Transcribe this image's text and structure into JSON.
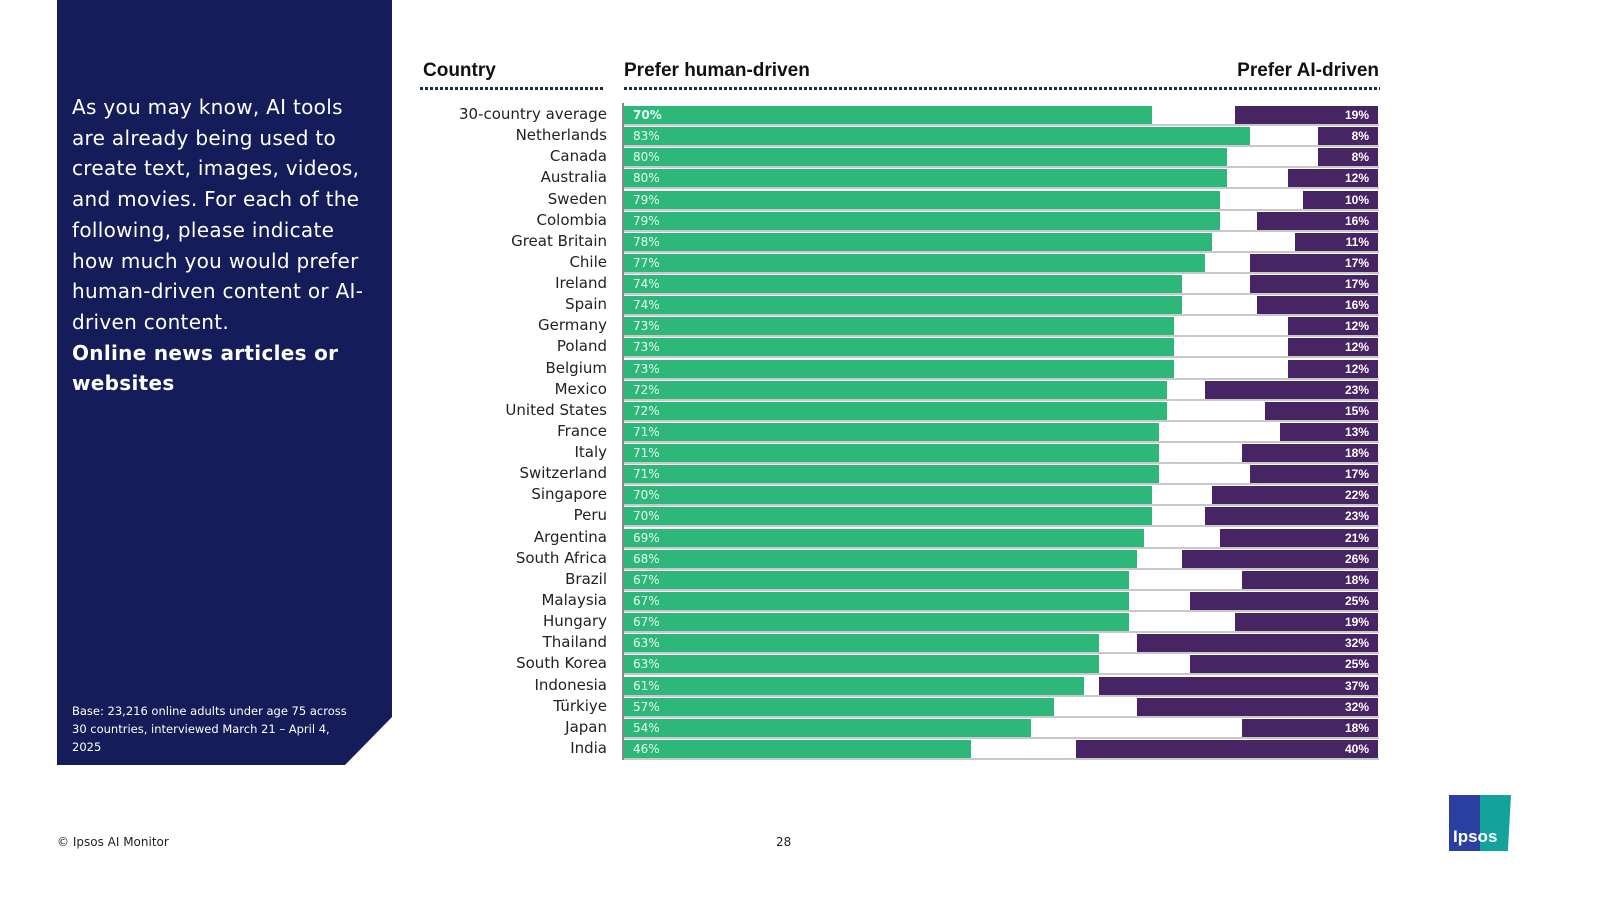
{
  "panel": {
    "question": "As you may know, AI tools are already being used to create text, images, videos, and movies. For each of the following, please indicate how much you would prefer human-driven content or AI-driven content.",
    "topic": "Online news articles or websites",
    "base": "Base: 23,216 online adults under age 75 across 30 countries, interviewed March 21 – April 4, 2025"
  },
  "footer": {
    "source": "© Ipsos AI Monitor",
    "page": "28",
    "logo": "Ipsos"
  },
  "colors": {
    "human": "#2db87a",
    "ai": "#472464",
    "panel": "#141c5a"
  },
  "chart_data": {
    "type": "bar",
    "headers": {
      "country": "Country",
      "human": "Prefer human-driven",
      "ai": "Prefer AI-driven"
    },
    "categories": [
      "30-country average",
      "Netherlands",
      "Canada",
      "Australia",
      "Sweden",
      "Colombia",
      "Great Britain",
      "Chile",
      "Ireland",
      "Spain",
      "Germany",
      "Poland",
      "Belgium",
      "Mexico",
      "United States",
      "France",
      "Italy",
      "Switzerland",
      "Singapore",
      "Peru",
      "Argentina",
      "South Africa",
      "Brazil",
      "Malaysia",
      "Hungary",
      "Thailand",
      "South Korea",
      "Indonesia",
      "Türkiye",
      "Japan",
      "India"
    ],
    "series": [
      {
        "name": "Prefer human-driven",
        "values": [
          70,
          83,
          80,
          80,
          79,
          79,
          78,
          77,
          74,
          74,
          73,
          73,
          73,
          72,
          72,
          71,
          71,
          71,
          70,
          70,
          69,
          68,
          67,
          67,
          67,
          63,
          63,
          61,
          57,
          54,
          46
        ]
      },
      {
        "name": "Prefer AI-driven",
        "values": [
          19,
          8,
          8,
          12,
          10,
          16,
          11,
          17,
          17,
          16,
          12,
          12,
          12,
          23,
          15,
          13,
          18,
          17,
          22,
          23,
          21,
          26,
          18,
          25,
          19,
          32,
          25,
          37,
          32,
          18,
          40
        ]
      }
    ],
    "xlim": [
      0,
      100
    ]
  }
}
